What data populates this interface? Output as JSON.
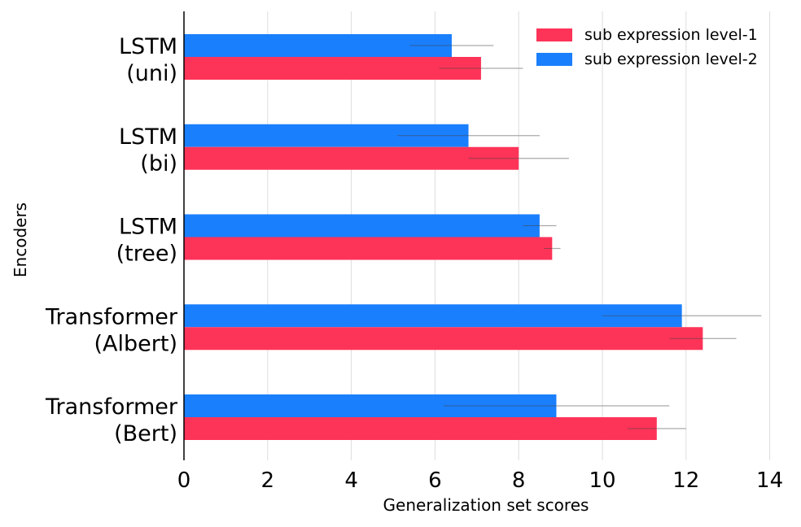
{
  "chart_data": {
    "type": "bar",
    "orientation": "horizontal",
    "title": "",
    "xlabel": "Generalization set scores",
    "ylabel": "Encoders",
    "xlim": [
      0,
      14.5
    ],
    "xticks": [
      0,
      2,
      4,
      6,
      8,
      10,
      12,
      14
    ],
    "grid": "vertical",
    "legend_position": "top-right",
    "categories": [
      [
        "LSTM",
        "(uni)"
      ],
      [
        "LSTM",
        "(bi)"
      ],
      [
        "LSTM",
        "(tree)"
      ],
      [
        "Transformer",
        "(Albert)"
      ],
      [
        "Transformer",
        "(Bert)"
      ]
    ],
    "series": [
      {
        "name": "sub expression level-2",
        "color": "#1a7ffd",
        "values": [
          6.4,
          6.8,
          8.5,
          11.9,
          8.9
        ],
        "error_low": [
          5.4,
          5.1,
          8.1,
          10.0,
          6.2
        ],
        "error_high": [
          7.4,
          8.5,
          8.9,
          13.8,
          11.6
        ]
      },
      {
        "name": "sub expression level-1",
        "color": "#fe3358",
        "values": [
          7.1,
          8.0,
          8.8,
          12.4,
          11.3
        ],
        "error_low": [
          6.1,
          6.8,
          8.6,
          11.6,
          10.6
        ],
        "error_high": [
          8.1,
          9.2,
          9.0,
          13.2,
          12.0
        ]
      }
    ],
    "legend_order": [
      "sub expression level-1",
      "sub expression level-2"
    ]
  }
}
